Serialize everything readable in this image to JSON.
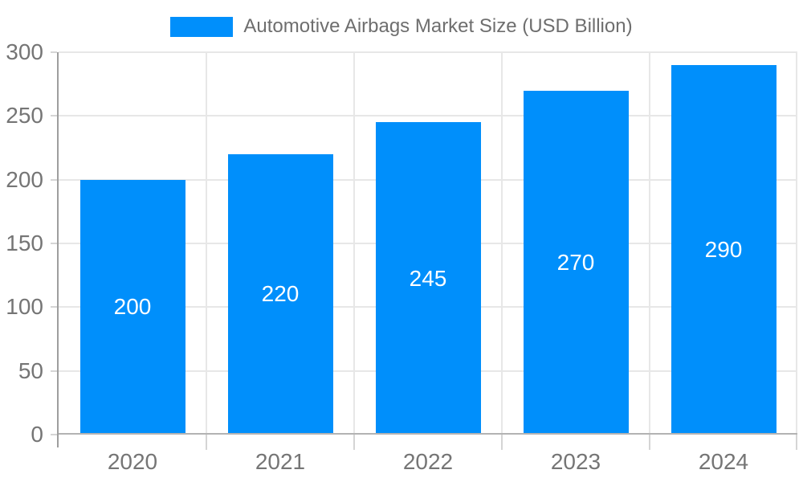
{
  "chart_data": {
    "type": "bar",
    "series_name": "Automotive Airbags Market Size (USD Billion)",
    "categories": [
      "2020",
      "2021",
      "2022",
      "2023",
      "2024"
    ],
    "values": [
      200,
      220,
      245,
      270,
      290
    ],
    "value_labels": [
      "200",
      "220",
      "245",
      "270",
      "290"
    ],
    "ytick_labels": [
      "0",
      "50",
      "100",
      "150",
      "200",
      "250",
      "300"
    ],
    "ylim": [
      0,
      300
    ],
    "ytick_step": 50,
    "grid": true,
    "legend_position": "top",
    "colors": {
      "bar": "#008FFB",
      "value_label": "#FFFFFF",
      "axis_label": "#757575",
      "legend_text": "#6E6E6E",
      "gridline": "#E7E7E7",
      "y_axis_line": "#9E9E9E",
      "x_axis_line": "#B3B3B3",
      "tick": "#D5D5D5",
      "background": "#FFFFFF"
    }
  }
}
